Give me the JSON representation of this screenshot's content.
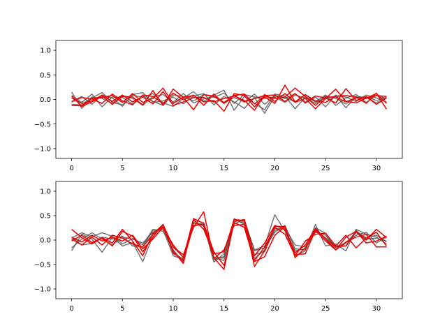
{
  "colors": {
    "dark_series": "#555555",
    "red_series": "#ee0000",
    "axes": "#000000",
    "background": "#ffffff"
  },
  "chart_data": [
    {
      "type": "line",
      "xlim": [
        -1.55,
        32.55
      ],
      "ylim": [
        -1.2,
        1.2
      ],
      "x_ticks": [
        0,
        5,
        10,
        15,
        20,
        25,
        30
      ],
      "y_ticks": [
        -1.0,
        -0.5,
        0.0,
        0.5,
        1.0
      ],
      "y_tick_labels": [
        "−1.0",
        "−0.5",
        "0.0",
        "0.5",
        "1.0"
      ],
      "grid": false,
      "x": [
        0,
        1,
        2,
        3,
        4,
        5,
        6,
        7,
        8,
        9,
        10,
        11,
        12,
        13,
        14,
        15,
        16,
        17,
        18,
        19,
        20,
        21,
        22,
        23,
        24,
        25,
        26,
        27,
        28,
        29,
        30,
        31
      ],
      "series": [
        {
          "color": "dark",
          "values": [
            0.15,
            -0.18,
            0.03,
            0.14,
            -0.06,
            -0.11,
            0.09,
            0.04,
            0.12,
            -0.07,
            -0.14,
            0.03,
            0.16,
            -0.04,
            0.09,
            0.19,
            -0.22,
            0.06,
            -0.08,
            -0.21,
            0.11,
            0.07,
            -0.19,
            0.05,
            -0.04,
            0.09,
            -0.12,
            0.03,
            0.1,
            -0.06,
            0.08,
            0.02
          ]
        },
        {
          "color": "dark",
          "values": [
            -0.04,
            0.06,
            -0.1,
            0.09,
            0.03,
            -0.14,
            0.1,
            0.14,
            -0.06,
            -0.03,
            0.05,
            -0.09,
            0.07,
            0.12,
            -0.11,
            0.06,
            -0.05,
            -0.18,
            0.04,
            -0.28,
            0.07,
            0.02,
            0.12,
            -0.08,
            0.05,
            -0.15,
            0.09,
            -0.17,
            0.06,
            0.04,
            -0.07,
            0.05
          ]
        },
        {
          "color": "dark",
          "values": [
            0.08,
            -0.06,
            0.11,
            -0.15,
            0.05,
            0.04,
            -0.09,
            0.07,
            -0.04,
            -0.12,
            0.09,
            0.06,
            -0.03,
            0.1,
            0.04,
            0.13,
            -0.08,
            0.1,
            0.05,
            0.02,
            0.05,
            -0.06,
            0.09,
            0.03,
            -0.08,
            0.07,
            0.02,
            -0.09,
            0.03,
            0.05,
            -0.02,
            0.04
          ]
        },
        {
          "color": "dark",
          "values": [
            -0.1,
            -0.11,
            0.05,
            0.02,
            -0.08,
            0.08,
            0.02,
            -0.12,
            0.06,
            0.1,
            -0.06,
            0.12,
            -0.07,
            0.01,
            0.06,
            -0.08,
            0.04,
            -0.05,
            0.11,
            -0.1,
            0.08,
            0.04,
            -0.05,
            0.09,
            -0.05,
            0.02,
            0.07,
            0.05,
            -0.04,
            0.09,
            0.03,
            -0.05
          ]
        },
        {
          "color": "red",
          "values": [
            -0.12,
            -0.13,
            0.02,
            0.04,
            0.08,
            -0.06,
            0.12,
            -0.06,
            0.02,
            0.23,
            -0.08,
            0.05,
            0.08,
            -0.05,
            -0.02,
            -0.24,
            0.12,
            0.08,
            -0.15,
            0.05,
            -0.08,
            0.29,
            -0.05,
            0.1,
            -0.03,
            -0.06,
            0.07,
            0.08,
            0.05,
            -0.08,
            0.13,
            -0.2
          ]
        },
        {
          "color": "red",
          "values": [
            0.07,
            -0.14,
            -0.05,
            0.07,
            -0.1,
            0.06,
            0.05,
            -0.11,
            0.18,
            -0.12,
            0.21,
            0.04,
            -0.21,
            0.1,
            0.07,
            -0.06,
            0.08,
            0.11,
            -0.09,
            0.07,
            0.02,
            0.05,
            0.23,
            0.06,
            -0.12,
            0.05,
            0.05,
            -0.05,
            0.04,
            0.02,
            0.08,
            0.06
          ]
        },
        {
          "color": "red",
          "values": [
            -0.05,
            0.04,
            0.01,
            -0.08,
            0.11,
            -0.03,
            -0.11,
            0.09,
            0.06,
            -0.08,
            0.13,
            -0.01,
            0.09,
            -0.12,
            0.11,
            -0.08,
            0.09,
            -0.05,
            0.02,
            0.08,
            0.09,
            -0.04,
            0.12,
            -0.06,
            0.07,
            0.03,
            -0.07,
            0.22,
            -0.02,
            0.06,
            -0.1,
            0.03
          ]
        },
        {
          "color": "red",
          "values": [
            0.03,
            -0.08,
            -0.03,
            0.09,
            -0.04,
            0.09,
            -0.05,
            0.05,
            -0.09,
            0.16,
            -0.12,
            -0.05,
            0.04,
            0.04,
            -0.05,
            0.02,
            0.07,
            -0.02,
            -0.22,
            0.1,
            -0.04,
            0.12,
            -0.06,
            0.02,
            -0.19,
            0.02,
            0.21,
            -0.04,
            -0.07,
            0.03,
            0.12,
            -0.08
          ]
        }
      ]
    },
    {
      "type": "line",
      "xlim": [
        -1.55,
        32.55
      ],
      "ylim": [
        -1.2,
        1.2
      ],
      "x_ticks": [
        0,
        5,
        10,
        15,
        20,
        25,
        30
      ],
      "y_ticks": [
        -1.0,
        -0.5,
        0.0,
        0.5,
        1.0
      ],
      "y_tick_labels": [
        "−1.0",
        "−0.5",
        "0.0",
        "0.5",
        "1.0"
      ],
      "grid": false,
      "x": [
        0,
        1,
        2,
        3,
        4,
        5,
        6,
        7,
        8,
        9,
        10,
        11,
        12,
        13,
        14,
        15,
        16,
        17,
        18,
        19,
        20,
        21,
        22,
        23,
        24,
        25,
        26,
        27,
        28,
        29,
        30,
        31
      ],
      "series": [
        {
          "color": "dark",
          "values": [
            -0.22,
            0.12,
            0.02,
            -0.25,
            0.06,
            -0.12,
            -0.05,
            -0.44,
            0.08,
            0.32,
            -0.28,
            -0.38,
            0.34,
            0.32,
            -0.45,
            -0.28,
            0.42,
            0.38,
            -0.2,
            -0.12,
            0.52,
            0.18,
            -0.32,
            -0.22,
            0.32,
            -0.12,
            -0.08,
            -0.22,
            0.22,
            0.12,
            0.06,
            -0.08
          ]
        },
        {
          "color": "dark",
          "values": [
            0.04,
            0.15,
            0.07,
            0.15,
            0.08,
            -0.08,
            0.03,
            -0.1,
            0.22,
            0.18,
            -0.2,
            -0.45,
            0.36,
            0.3,
            -0.35,
            -0.42,
            0.42,
            0.35,
            -0.38,
            -0.2,
            0.2,
            0.25,
            -0.1,
            -0.14,
            0.16,
            0.1,
            -0.15,
            -0.05,
            0.16,
            0.05,
            0.1,
            -0.04
          ]
        },
        {
          "color": "dark",
          "values": [
            -0.16,
            0.02,
            0.15,
            0.02,
            -0.1,
            0.06,
            0.02,
            -0.06,
            0.16,
            0.28,
            -0.15,
            -0.35,
            0.28,
            0.36,
            -0.38,
            -0.34,
            0.33,
            0.42,
            -0.22,
            -0.16,
            0.16,
            0.3,
            -0.18,
            -0.2,
            0.25,
            0.14,
            -0.2,
            -0.06,
            0.1,
            0.16,
            -0.06,
            0.06
          ]
        },
        {
          "color": "dark",
          "values": [
            0.06,
            -0.1,
            -0.07,
            0.06,
            0.02,
            0.08,
            -0.12,
            -0.14,
            0.2,
            0.22,
            -0.32,
            -0.4,
            0.4,
            0.28,
            -0.4,
            -0.36,
            0.44,
            0.32,
            -0.3,
            -0.24,
            0.24,
            0.22,
            -0.22,
            -0.18,
            0.18,
            0.05,
            -0.12,
            -0.12,
            0.2,
            0.02,
            0.04,
            -0.02
          ]
        },
        {
          "color": "red",
          "values": [
            0.22,
            0.05,
            -0.08,
            0.05,
            -0.06,
            0.22,
            -0.02,
            -0.32,
            0.14,
            0.26,
            -0.22,
            -0.48,
            0.42,
            0.22,
            -0.28,
            -0.24,
            0.42,
            0.4,
            -0.54,
            -0.22,
            0.28,
            0.28,
            -0.36,
            -0.16,
            0.22,
            0.02,
            -0.14,
            -0.12,
            0.16,
            0.0,
            0.22,
            0.05
          ]
        },
        {
          "color": "red",
          "values": [
            -0.02,
            0.1,
            -0.05,
            0.04,
            -0.12,
            0.18,
            0.08,
            -0.24,
            0.06,
            0.32,
            -0.14,
            -0.3,
            0.26,
            0.58,
            -0.38,
            -0.2,
            0.3,
            0.32,
            -0.42,
            -0.14,
            0.26,
            0.12,
            -0.32,
            -0.02,
            0.12,
            0.14,
            -0.12,
            0.1,
            -0.16,
            0.04,
            0.16,
            -0.12
          ]
        },
        {
          "color": "red",
          "values": [
            0.02,
            -0.1,
            0.06,
            -0.1,
            0.1,
            0.04,
            -0.08,
            -0.14,
            0.12,
            0.32,
            -0.26,
            -0.42,
            0.3,
            0.32,
            -0.36,
            -0.6,
            0.38,
            0.42,
            -0.32,
            -0.06,
            0.3,
            0.22,
            -0.26,
            -0.1,
            0.24,
            0.02,
            -0.2,
            0.06,
            0.18,
            -0.06,
            -0.02,
            0.08
          ]
        },
        {
          "color": "red",
          "values": [
            0.06,
            -0.04,
            0.1,
            -0.02,
            0.06,
            -0.02,
            0.1,
            -0.18,
            0.02,
            0.26,
            -0.1,
            -0.36,
            0.44,
            0.34,
            -0.24,
            -0.52,
            0.36,
            0.26,
            -0.44,
            -0.34,
            0.1,
            0.28,
            -0.3,
            -0.28,
            0.2,
            -0.02,
            -0.2,
            -0.04,
            0.06,
            0.12,
            -0.14,
            -0.14
          ]
        }
      ]
    }
  ]
}
